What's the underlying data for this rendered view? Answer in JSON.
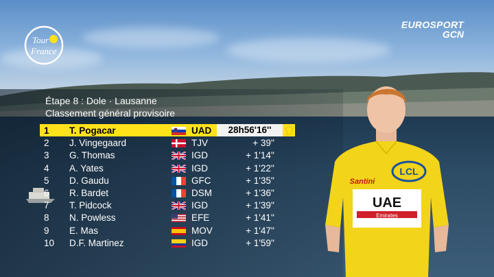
{
  "broadcaster": {
    "line1": "EUROSPORT",
    "line2": "GCN"
  },
  "race_logo": {
    "icon": "tour-de-france-logo",
    "text": "Tour de France"
  },
  "header": {
    "stage": "Étape 8 : Dole · Lausanne",
    "subtitle": "Classement général provisoire"
  },
  "colors": {
    "leader_yellow": "#ffe21a",
    "gap_cell": "#f3f3f3"
  },
  "standings": [
    {
      "pos": "1",
      "name": "T. Pogacar",
      "flag": "flag-slovenia-icon",
      "team": "UAD",
      "gap": "28h56'16''"
    },
    {
      "pos": "2",
      "name": "J. Vingegaard",
      "flag": "flag-denmark-icon",
      "team": "TJV",
      "gap": "+ 39''"
    },
    {
      "pos": "3",
      "name": "G. Thomas",
      "flag": "flag-uk-icon",
      "team": "IGD",
      "gap": "+ 1'14''"
    },
    {
      "pos": "4",
      "name": "A. Yates",
      "flag": "flag-uk-icon",
      "team": "IGD",
      "gap": "+ 1'22''"
    },
    {
      "pos": "5",
      "name": "D. Gaudu",
      "flag": "flag-france-icon",
      "team": "GFC",
      "gap": "+ 1'35''"
    },
    {
      "pos": "6",
      "name": "R. Bardet",
      "flag": "flag-france-icon",
      "team": "DSM",
      "gap": "+ 1'36''"
    },
    {
      "pos": "7",
      "name": "T. Pidcock",
      "flag": "flag-uk-icon",
      "team": "IGD",
      "gap": "+ 1'39''"
    },
    {
      "pos": "8",
      "name": "N. Powless",
      "flag": "flag-usa-icon",
      "team": "EFE",
      "gap": "+ 1'41''"
    },
    {
      "pos": "9",
      "name": "E. Mas",
      "flag": "flag-spain-icon",
      "team": "MOV",
      "gap": "+ 1'47''"
    },
    {
      "pos": "10",
      "name": "D.F. Martinez",
      "flag": "flag-colombia-icon",
      "team": "IGD",
      "gap": "+ 1'59''"
    }
  ],
  "rider_jersey": {
    "sponsor_top": "LCL",
    "brand": "Santini",
    "team": "UAE",
    "sub": "Emirates"
  }
}
